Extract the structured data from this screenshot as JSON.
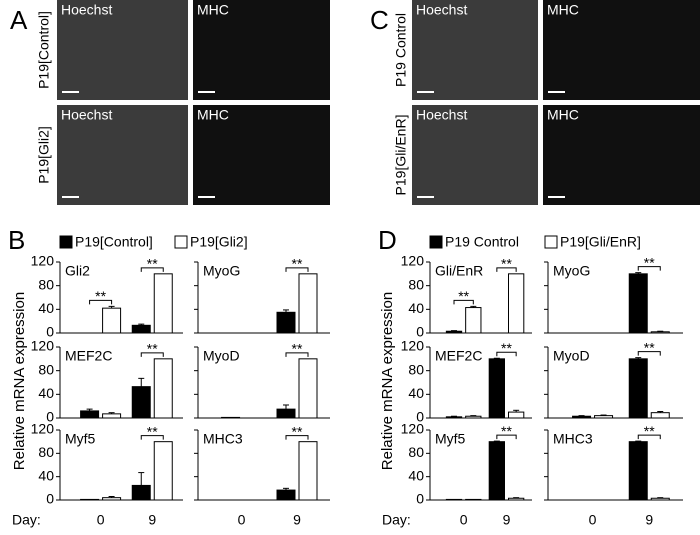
{
  "figure_a": {
    "label": "A",
    "rows": [
      "P19[Control]",
      "P19[Gli2]"
    ],
    "columns": [
      "Hoechst",
      "MHC"
    ]
  },
  "figure_c": {
    "label": "C",
    "rows": [
      "P19 Control",
      "P19[Gli/EnR]"
    ],
    "columns": [
      "Hoechst",
      "MHC"
    ]
  },
  "chart_data": [
    {
      "type": "bar",
      "label": "B",
      "ylabel": "Relative mRNA expression",
      "xlabel": "Day:",
      "categories": [
        "0",
        "9"
      ],
      "series": [
        {
          "name": "P19[Control]",
          "color": "#000000"
        },
        {
          "name": "P19[Gli2]",
          "color": "#ffffff"
        }
      ],
      "ylim": [
        0,
        120
      ],
      "yticks": [
        0,
        40,
        80,
        120
      ],
      "panels": [
        {
          "title": "Gli2",
          "series": [
            {
              "values": [
                0,
                13
              ],
              "errors": [
                0,
                2
              ]
            },
            {
              "values": [
                42,
                100
              ],
              "errors": [
                3,
                0
              ]
            }
          ],
          "annotations": [
            "**",
            "**"
          ]
        },
        {
          "title": "MyoG",
          "series": [
            {
              "values": [
                0,
                35
              ],
              "errors": [
                0,
                4
              ]
            },
            {
              "values": [
                0,
                100
              ],
              "errors": [
                0,
                0
              ]
            }
          ],
          "annotations": [
            null,
            "**"
          ]
        },
        {
          "title": "MEF2C",
          "series": [
            {
              "values": [
                12,
                53
              ],
              "errors": [
                3,
                14
              ]
            },
            {
              "values": [
                7,
                100
              ],
              "errors": [
                2,
                0
              ]
            }
          ],
          "annotations": [
            null,
            "**"
          ]
        },
        {
          "title": "MyoD",
          "series": [
            {
              "values": [
                1,
                15
              ],
              "errors": [
                0,
                7
              ]
            },
            {
              "values": [
                0,
                100
              ],
              "errors": [
                0,
                0
              ]
            }
          ],
          "annotations": [
            null,
            "**"
          ]
        },
        {
          "title": "Myf5",
          "series": [
            {
              "values": [
                1,
                25
              ],
              "errors": [
                0,
                22
              ]
            },
            {
              "values": [
                4,
                100
              ],
              "errors": [
                2,
                0
              ]
            }
          ],
          "annotations": [
            null,
            "**"
          ]
        },
        {
          "title": "MHC3",
          "series": [
            {
              "values": [
                0,
                17
              ],
              "errors": [
                0,
                3
              ]
            },
            {
              "values": [
                0,
                100
              ],
              "errors": [
                0,
                0
              ]
            }
          ],
          "annotations": [
            null,
            "**"
          ]
        }
      ]
    },
    {
      "type": "bar",
      "label": "D",
      "ylabel": "Relative mRNA expression",
      "xlabel": "Day:",
      "categories": [
        "0",
        "9"
      ],
      "series": [
        {
          "name": "P19 Control",
          "color": "#000000"
        },
        {
          "name": "P19[Gli/EnR]",
          "color": "#ffffff"
        }
      ],
      "ylim": [
        0,
        120
      ],
      "yticks": [
        0,
        40,
        80,
        120
      ],
      "panels": [
        {
          "title": "Gli/EnR",
          "series": [
            {
              "values": [
                3,
                0
              ],
              "errors": [
                1,
                0
              ]
            },
            {
              "values": [
                43,
                100
              ],
              "errors": [
                2,
                0
              ]
            }
          ],
          "annotations": [
            "**",
            "**"
          ]
        },
        {
          "title": "MyoG",
          "series": [
            {
              "values": [
                0,
                100
              ],
              "errors": [
                0,
                2
              ]
            },
            {
              "values": [
                0,
                2
              ],
              "errors": [
                0,
                1
              ]
            }
          ],
          "annotations": [
            null,
            "**"
          ]
        },
        {
          "title": "MEF2C",
          "series": [
            {
              "values": [
                2,
                100
              ],
              "errors": [
                1,
                1
              ]
            },
            {
              "values": [
                3,
                10
              ],
              "errors": [
                1,
                3
              ]
            }
          ],
          "annotations": [
            null,
            "**"
          ]
        },
        {
          "title": "MyoD",
          "series": [
            {
              "values": [
                3,
                100
              ],
              "errors": [
                1,
                2
              ]
            },
            {
              "values": [
                4,
                9
              ],
              "errors": [
                1,
                2
              ]
            }
          ],
          "annotations": [
            null,
            "**"
          ]
        },
        {
          "title": "Myf5",
          "series": [
            {
              "values": [
                1,
                100
              ],
              "errors": [
                0,
                1
              ]
            },
            {
              "values": [
                1,
                3
              ],
              "errors": [
                0,
                1
              ]
            }
          ],
          "annotations": [
            null,
            "**"
          ]
        },
        {
          "title": "MHC3",
          "series": [
            {
              "values": [
                0,
                100
              ],
              "errors": [
                0,
                1
              ]
            },
            {
              "values": [
                0,
                3
              ],
              "errors": [
                0,
                1
              ]
            }
          ],
          "annotations": [
            null,
            "**"
          ]
        }
      ]
    }
  ]
}
